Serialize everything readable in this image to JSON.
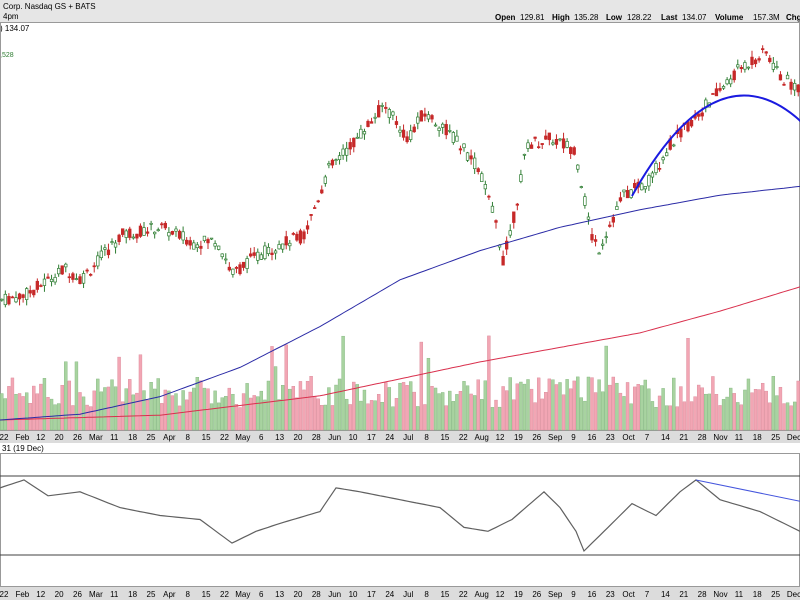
{
  "header": {
    "symbol_line": "Corp. Nasdaq GS + BATS",
    "time_line": "4pm",
    "price_tag": ") 134.07",
    "ma_tag": ",528",
    "open_label": "Open",
    "open_value": "129.81",
    "high_label": "High",
    "high_value": "135.28",
    "low_label": "Low",
    "low_value": "128.22",
    "last_label": "Last",
    "last_value": "134.07",
    "volume_label": "Volume",
    "volume_value": "157.3M",
    "change_label": "Chg"
  },
  "indicator": {
    "label": "31 (19 Dec)"
  },
  "colors": {
    "background": "#ffffff",
    "header_bg": "#e6e6e6",
    "axis_bg": "#dcdcdc",
    "up": "#2e7d32",
    "down": "#c62828",
    "vol_up": "#a8d3a0",
    "vol_down": "#f2a6b4",
    "ma_fast": "#2b2ba6",
    "ma_slow": "#d9304d",
    "arc": "#1a1ae0",
    "indicator_line": "#606060",
    "trend_line": "#4455dd"
  },
  "chart_data": {
    "type": "candlestick",
    "x_axis": {
      "ticks": [
        "22",
        "Feb",
        "12",
        "20",
        "26",
        "Mar",
        "11",
        "18",
        "25",
        "Apr",
        "8",
        "15",
        "22",
        "May",
        "6",
        "13",
        "20",
        "28",
        "Jun",
        "10",
        "17",
        "24",
        "Jul",
        "8",
        "15",
        "22",
        "Aug",
        "12",
        "19",
        "26",
        "Sep",
        "9",
        "16",
        "23",
        "Oct",
        "7",
        "14",
        "21",
        "28",
        "Nov",
        "11",
        "18",
        "25",
        "Dec"
      ]
    },
    "price": {
      "seed": 7,
      "points": [
        [
          0,
          0.0
        ],
        [
          0.03,
          0.02
        ],
        [
          0.08,
          0.12
        ],
        [
          0.1,
          0.08
        ],
        [
          0.15,
          0.25
        ],
        [
          0.2,
          0.28
        ],
        [
          0.24,
          0.22
        ],
        [
          0.27,
          0.23
        ],
        [
          0.29,
          0.1
        ],
        [
          0.31,
          0.15
        ],
        [
          0.34,
          0.2
        ],
        [
          0.38,
          0.25
        ],
        [
          0.41,
          0.5
        ],
        [
          0.44,
          0.6
        ],
        [
          0.48,
          0.75
        ],
        [
          0.51,
          0.62
        ],
        [
          0.53,
          0.72
        ],
        [
          0.56,
          0.65
        ],
        [
          0.58,
          0.58
        ],
        [
          0.6,
          0.5
        ],
        [
          0.62,
          0.3
        ],
        [
          0.63,
          0.15
        ],
        [
          0.645,
          0.35
        ],
        [
          0.66,
          0.6
        ],
        [
          0.69,
          0.62
        ],
        [
          0.72,
          0.58
        ],
        [
          0.74,
          0.25
        ],
        [
          0.75,
          0.2
        ],
        [
          0.78,
          0.4
        ],
        [
          0.81,
          0.45
        ],
        [
          0.84,
          0.6
        ],
        [
          0.87,
          0.7
        ],
        [
          0.9,
          0.8
        ],
        [
          0.93,
          0.9
        ],
        [
          0.96,
          0.95
        ],
        [
          0.98,
          0.85
        ],
        [
          1.0,
          0.82
        ]
      ]
    },
    "ma_fast": {
      "points": [
        [
          0,
          0.0
        ],
        [
          0.1,
          0.02
        ],
        [
          0.2,
          0.08
        ],
        [
          0.3,
          0.18
        ],
        [
          0.4,
          0.32
        ],
        [
          0.5,
          0.48
        ],
        [
          0.6,
          0.58
        ],
        [
          0.7,
          0.66
        ],
        [
          0.8,
          0.72
        ],
        [
          0.9,
          0.77
        ],
        [
          1.0,
          0.8
        ]
      ]
    },
    "ma_slow": {
      "points": [
        [
          0,
          0.0
        ],
        [
          0.2,
          0.02
        ],
        [
          0.4,
          0.1
        ],
        [
          0.6,
          0.24
        ],
        [
          0.8,
          0.36
        ],
        [
          0.9,
          0.45
        ],
        [
          1.0,
          0.55
        ]
      ]
    },
    "indicator_series": {
      "points": [
        [
          0,
          0.85
        ],
        [
          0.03,
          0.95
        ],
        [
          0.06,
          0.75
        ],
        [
          0.1,
          0.8
        ],
        [
          0.15,
          0.6
        ],
        [
          0.2,
          0.5
        ],
        [
          0.25,
          0.45
        ],
        [
          0.29,
          0.15
        ],
        [
          0.32,
          0.3
        ],
        [
          0.35,
          0.4
        ],
        [
          0.4,
          0.55
        ],
        [
          0.42,
          0.85
        ],
        [
          0.45,
          0.8
        ],
        [
          0.5,
          0.7
        ],
        [
          0.55,
          0.6
        ],
        [
          0.58,
          0.35
        ],
        [
          0.61,
          0.3
        ],
        [
          0.64,
          0.45
        ],
        [
          0.68,
          0.8
        ],
        [
          0.7,
          0.6
        ],
        [
          0.72,
          0.3
        ],
        [
          0.73,
          0.05
        ],
        [
          0.76,
          0.35
        ],
        [
          0.79,
          0.65
        ],
        [
          0.82,
          0.5
        ],
        [
          0.85,
          0.8
        ],
        [
          0.87,
          0.95
        ],
        [
          0.9,
          0.7
        ],
        [
          0.95,
          0.55
        ],
        [
          1.0,
          0.3
        ]
      ]
    },
    "arc": {
      "center": 0.93,
      "width": 0.14,
      "height": 0.85
    },
    "trend_line": {
      "from": [
        0.87,
        0.95
      ],
      "to": [
        1.0,
        0.68
      ]
    }
  }
}
